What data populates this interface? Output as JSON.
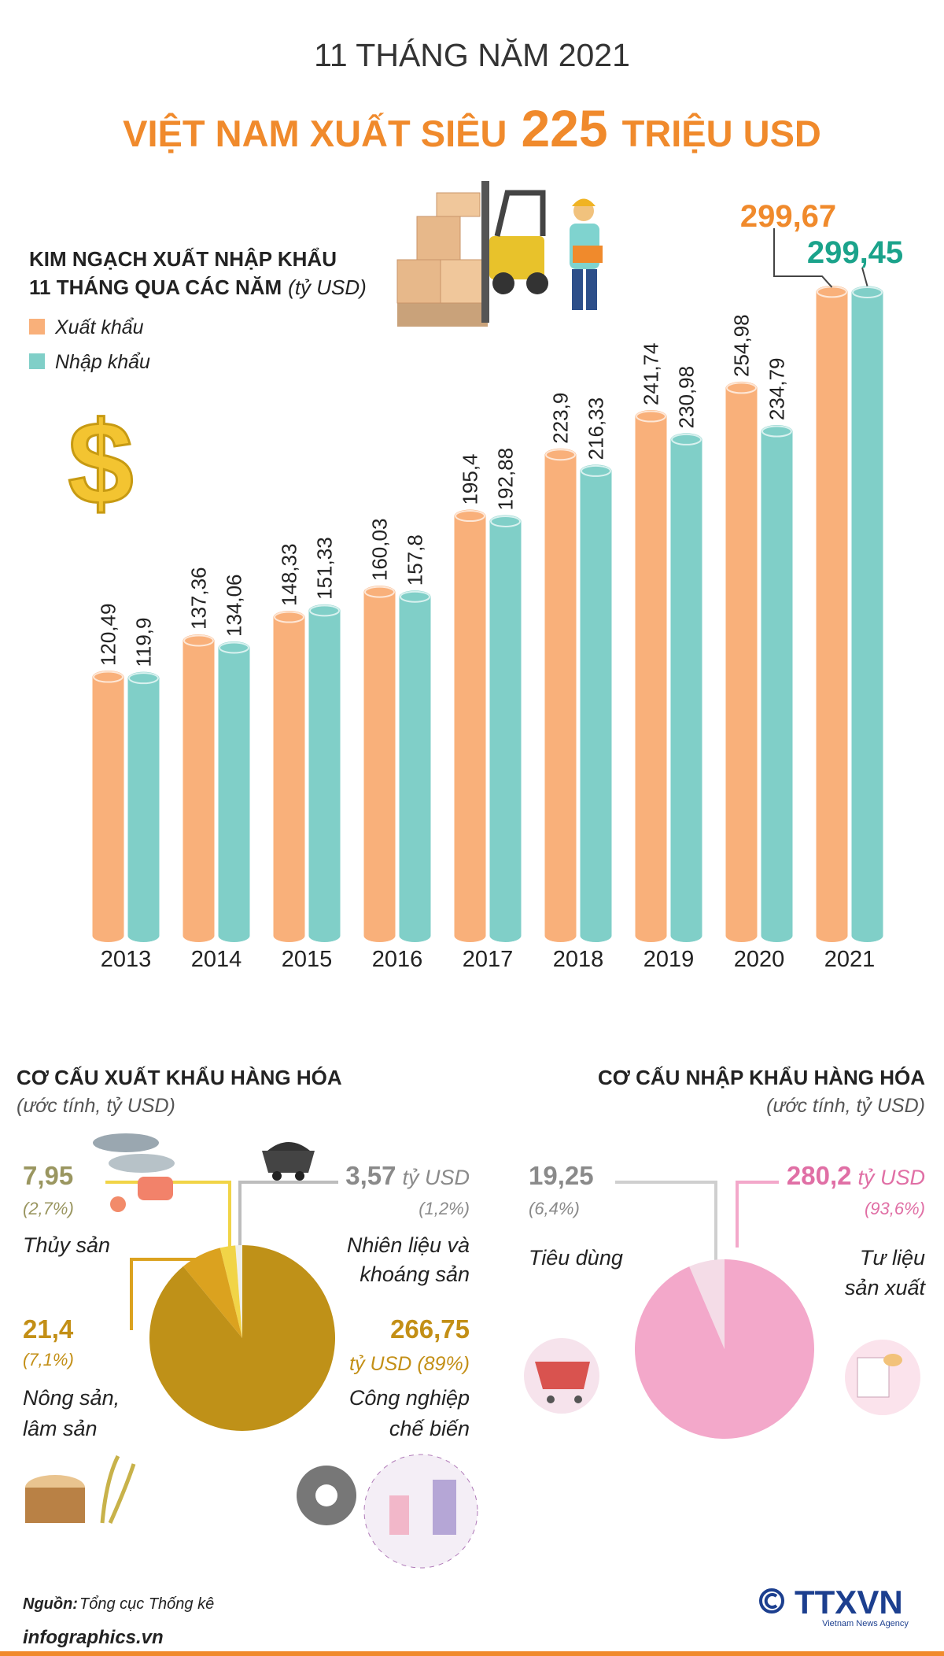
{
  "header": {
    "kicker": "11 THÁNG NĂM 2021",
    "headline_before": "VIỆT NAM XUẤT SIÊU",
    "headline_number": 225,
    "headline_after": "TRIỆU USD"
  },
  "chart_data": [
    {
      "type": "bar",
      "title": "KIM NGẠCH XUẤT NHẬP KHẨU",
      "subtitle": "11 THÁNG QUA CÁC NĂM",
      "unit": "(tỷ USD)",
      "categories": [
        "2013",
        "2014",
        "2015",
        "2016",
        "2017",
        "2018",
        "2019",
        "2020",
        "2021"
      ],
      "series": [
        {
          "name": "Xuất khẩu",
          "color": "#f9b07a",
          "values": [
            120.49,
            137.36,
            148.33,
            160.03,
            195.4,
            223.9,
            241.74,
            254.98,
            299.67
          ],
          "value_labels": [
            "120,49",
            "137,36",
            "148,33",
            "160,03",
            "195,4",
            "223,9",
            "241,74",
            "254,98",
            "299,67"
          ]
        },
        {
          "name": "Nhập khẩu",
          "color": "#80cfc8",
          "values": [
            119.9,
            134.06,
            151.33,
            157.8,
            192.88,
            216.33,
            230.98,
            234.79,
            299.45
          ],
          "value_labels": [
            "119,9",
            "134,06",
            "151,33",
            "157,8",
            "192,88",
            "216,33",
            "230,98",
            "234,79",
            "299,45"
          ]
        }
      ]
    },
    {
      "type": "pie",
      "title": "CƠ CẤU XUẤT KHẨU HÀNG HÓA",
      "subtitle": "(ước tính, tỷ USD)",
      "unit": "tỷ USD",
      "categories": [
        [
          "Nhiên liệu và",
          "khoáng sản"
        ],
        [
          "Thủy sản"
        ],
        [
          "Nông sản,",
          "lâm sản"
        ],
        [
          "Công nghiệp",
          "chế biến"
        ]
      ],
      "values": [
        3.57,
        7.95,
        21.4,
        266.75
      ],
      "value_labels": [
        "3,57",
        "7,95",
        "21,4",
        "266,75"
      ],
      "shares": [
        1.2,
        2.7,
        7.1,
        89
      ],
      "share_labels": [
        "(1,2%)",
        "(2,7%)",
        "(7,1%)",
        "(89%)"
      ],
      "colors": [
        "#efefea",
        "#f1d447",
        "#dba21f",
        "#bf9118"
      ]
    },
    {
      "type": "pie",
      "title": "CƠ CẤU NHẬP KHẨU HÀNG HÓA",
      "subtitle": "(ước tính, tỷ USD)",
      "unit": "tỷ USD",
      "categories": [
        [
          "Tiêu dùng"
        ],
        [
          "Tư liệu",
          "sản xuất"
        ]
      ],
      "values": [
        19.25,
        280.2
      ],
      "value_labels": [
        "19,25",
        "280,2"
      ],
      "shares": [
        6.4,
        93.6
      ],
      "share_labels": [
        "(6,4%)",
        "(93,6%)"
      ],
      "colors": [
        "#f4dce7",
        "#f3a8ca"
      ]
    }
  ],
  "footer": {
    "source_label": "Nguồn:",
    "source": "Tổng cục Thống kê",
    "site": "infographics.vn",
    "logo": "TTXVN",
    "agency": "Vietnam News Agency"
  }
}
